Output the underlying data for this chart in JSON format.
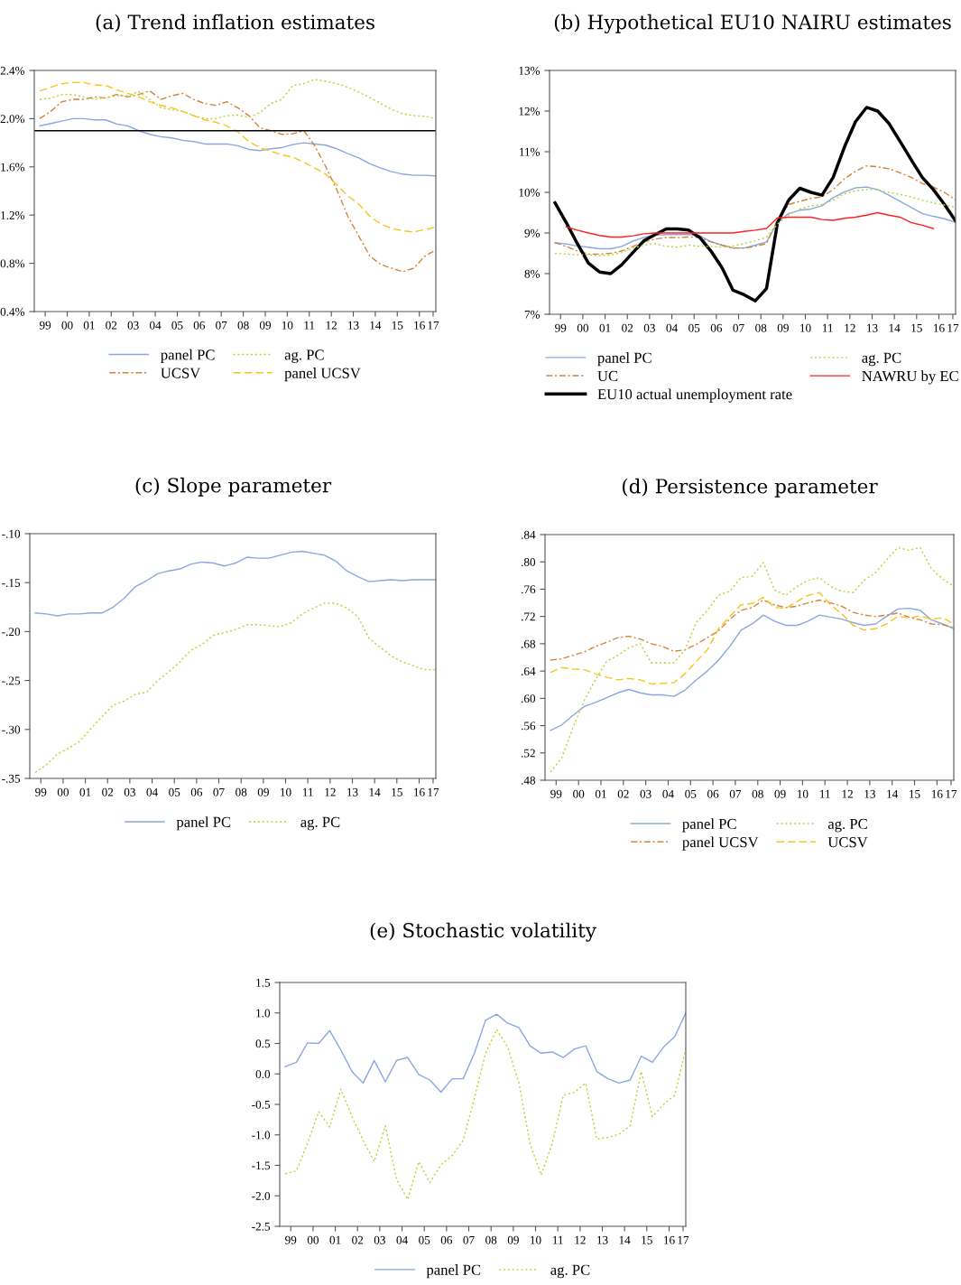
{
  "chart_data": [
    {
      "type": "line",
      "title": "(a) Trend inflation estimates",
      "x": [
        "1999-04",
        "1999-10",
        "2000-04",
        "2000-10",
        "2001-04",
        "2001-10",
        "2002-04",
        "2002-10",
        "2003-04",
        "2003-10",
        "2004-04",
        "2004-10",
        "2005-04",
        "2005-10",
        "2006-04",
        "2006-10",
        "2007-04",
        "2007-10",
        "2008-04",
        "2008-10",
        "2009-04",
        "2009-10",
        "2010-04",
        "2010-10",
        "2011-04",
        "2011-10",
        "2012-04",
        "2012-10",
        "2013-04",
        "2013-10",
        "2014-04",
        "2014-10",
        "2015-04",
        "2015-10",
        "2016-04",
        "2016-10",
        "2017-04"
      ],
      "xlim": [
        "1999-01",
        "2017-04"
      ],
      "xticks": [
        {
          "value": "1999-07",
          "label": "99"
        },
        {
          "value": "2000-07",
          "label": "00"
        },
        {
          "value": "2001-07",
          "label": "01"
        },
        {
          "value": "2002-07",
          "label": "02"
        },
        {
          "value": "2003-07",
          "label": "03"
        },
        {
          "value": "2004-07",
          "label": "04"
        },
        {
          "value": "2005-07",
          "label": "05"
        },
        {
          "value": "2006-07",
          "label": "06"
        },
        {
          "value": "2007-07",
          "label": "07"
        },
        {
          "value": "2008-07",
          "label": "08"
        },
        {
          "value": "2009-07",
          "label": "09"
        },
        {
          "value": "2010-07",
          "label": "10"
        },
        {
          "value": "2011-07",
          "label": "11"
        },
        {
          "value": "2012-07",
          "label": "12"
        },
        {
          "value": "2013-07",
          "label": "13"
        },
        {
          "value": "2014-07",
          "label": "14"
        },
        {
          "value": "2015-07",
          "label": "15"
        },
        {
          "value": "2016-07",
          "label": "16"
        },
        {
          "value": "2017-02-15",
          "label": "17"
        }
      ],
      "ylim": [
        0.4,
        2.4
      ],
      "yticks": [
        {
          "value": 0.4,
          "label": "0.4%"
        },
        {
          "value": 0.8,
          "label": "0.8%"
        },
        {
          "value": 1.2,
          "label": "1.2%"
        },
        {
          "value": 1.6,
          "label": "1.6%"
        },
        {
          "value": 2.0,
          "label": "2.0%"
        },
        {
          "value": 2.4,
          "label": "2.4%"
        }
      ],
      "legend": "bottom",
      "ref_lines": [
        {
          "axis": "y",
          "value": 1.9,
          "color": "#000000"
        }
      ],
      "series": [
        {
          "name": "panel PC",
          "color": "#8aa8e0",
          "line_style": "solid",
          "values": [
            1.94,
            1.96,
            1.98,
            2.0,
            2.0,
            1.99,
            1.99,
            1.955,
            1.94,
            1.9,
            1.87,
            1.85,
            1.84,
            1.82,
            1.81,
            1.79,
            1.79,
            1.79,
            1.775,
            1.745,
            1.735,
            1.75,
            1.76,
            1.785,
            1.8,
            1.79,
            1.78,
            1.75,
            1.71,
            1.675,
            1.625,
            1.59,
            1.56,
            1.54,
            1.53,
            1.53,
            1.525
          ]
        },
        {
          "name": "UCSV",
          "color": "#d2853a",
          "line_style": "dashdot",
          "values": [
            2.0,
            2.06,
            2.14,
            2.16,
            2.16,
            2.18,
            2.17,
            2.2,
            2.18,
            2.2,
            2.23,
            2.16,
            2.19,
            2.21,
            2.16,
            2.125,
            2.11,
            2.14,
            2.09,
            2.025,
            1.925,
            1.9,
            1.87,
            1.875,
            1.9,
            1.775,
            1.6,
            1.41,
            1.19,
            1.025,
            0.86,
            0.79,
            0.76,
            0.73,
            0.76,
            0.86,
            0.91
          ]
        },
        {
          "name": "ag. PC",
          "color": "#b8d436",
          "line_style": "dotted",
          "values": [
            2.16,
            2.17,
            2.2,
            2.2,
            2.18,
            2.16,
            2.175,
            2.19,
            2.19,
            2.225,
            2.16,
            2.09,
            2.075,
            2.06,
            2.025,
            2.0,
            2.0,
            2.025,
            2.03,
            2.01,
            2.05,
            2.125,
            2.16,
            2.275,
            2.29,
            2.325,
            2.31,
            2.29,
            2.26,
            2.22,
            2.175,
            2.125,
            2.075,
            2.04,
            2.025,
            2.02,
            2.0
          ]
        },
        {
          "name": "panel UCSV",
          "color": "#f5c518",
          "line_style": "dashed",
          "values": [
            2.23,
            2.26,
            2.29,
            2.3,
            2.3,
            2.28,
            2.275,
            2.24,
            2.21,
            2.18,
            2.14,
            2.11,
            2.09,
            2.06,
            2.025,
            1.99,
            1.97,
            1.94,
            1.89,
            1.81,
            1.76,
            1.73,
            1.7,
            1.68,
            1.64,
            1.59,
            1.54,
            1.45,
            1.36,
            1.29,
            1.19,
            1.125,
            1.09,
            1.07,
            1.06,
            1.08,
            1.1
          ]
        }
      ]
    },
    {
      "type": "line",
      "title": "(b) Hypothetical EU10 NAIRU estimates",
      "x": [
        "1999-04",
        "1999-10",
        "2000-04",
        "2000-10",
        "2001-04",
        "2001-10",
        "2002-04",
        "2002-10",
        "2003-04",
        "2003-10",
        "2004-04",
        "2004-10",
        "2005-04",
        "2005-10",
        "2006-04",
        "2006-10",
        "2007-04",
        "2007-10",
        "2008-04",
        "2008-10",
        "2009-04",
        "2009-10",
        "2010-04",
        "2010-10",
        "2011-04",
        "2011-10",
        "2012-04",
        "2012-10",
        "2013-04",
        "2013-10",
        "2014-04",
        "2014-10",
        "2015-04",
        "2015-10",
        "2016-04",
        "2016-10",
        "2017-04"
      ],
      "xlim": [
        "1999-01",
        "2017-04"
      ],
      "xticks": [
        {
          "value": "1999-07",
          "label": "99"
        },
        {
          "value": "2000-07",
          "label": "00"
        },
        {
          "value": "2001-07",
          "label": "01"
        },
        {
          "value": "2002-07",
          "label": "02"
        },
        {
          "value": "2003-07",
          "label": "03"
        },
        {
          "value": "2004-07",
          "label": "04"
        },
        {
          "value": "2005-07",
          "label": "05"
        },
        {
          "value": "2006-07",
          "label": "06"
        },
        {
          "value": "2007-07",
          "label": "07"
        },
        {
          "value": "2008-07",
          "label": "08"
        },
        {
          "value": "2009-07",
          "label": "09"
        },
        {
          "value": "2010-07",
          "label": "10"
        },
        {
          "value": "2011-07",
          "label": "11"
        },
        {
          "value": "2012-07",
          "label": "12"
        },
        {
          "value": "2013-07",
          "label": "13"
        },
        {
          "value": "2014-07",
          "label": "14"
        },
        {
          "value": "2015-07",
          "label": "15"
        },
        {
          "value": "2016-07",
          "label": "16"
        },
        {
          "value": "2017-02-15",
          "label": "17"
        }
      ],
      "ylim": [
        7,
        13
      ],
      "yticks": [
        {
          "value": 7,
          "label": "7%"
        },
        {
          "value": 8,
          "label": "8%"
        },
        {
          "value": 9,
          "label": "9%"
        },
        {
          "value": 10,
          "label": "10%"
        },
        {
          "value": 11,
          "label": "11%"
        },
        {
          "value": 12,
          "label": "12%"
        },
        {
          "value": 13,
          "label": "13%"
        }
      ],
      "legend": "bottom",
      "series": [
        {
          "name": "panel PC",
          "color": "#8aa8e0",
          "line_style": "solid",
          "values": [
            8.76,
            8.73,
            8.68,
            8.65,
            8.61,
            8.61,
            8.67,
            8.8,
            8.89,
            8.95,
            8.96,
            8.96,
            8.96,
            8.93,
            8.79,
            8.7,
            8.63,
            8.63,
            8.7,
            8.78,
            9.26,
            9.48,
            9.56,
            9.59,
            9.67,
            9.87,
            10.01,
            10.11,
            10.13,
            10.07,
            9.93,
            9.78,
            9.63,
            9.48,
            9.41,
            9.35,
            9.26
          ]
        },
        {
          "name": "UC",
          "color": "#d2853a",
          "line_style": "dashdot",
          "values": [
            8.76,
            8.67,
            8.56,
            8.48,
            8.48,
            8.5,
            8.56,
            8.67,
            8.78,
            8.85,
            8.89,
            8.89,
            8.9,
            8.89,
            8.78,
            8.7,
            8.63,
            8.63,
            8.67,
            8.74,
            9.33,
            9.7,
            9.78,
            9.85,
            9.89,
            10.07,
            10.33,
            10.52,
            10.65,
            10.63,
            10.58,
            10.48,
            10.37,
            10.22,
            10.13,
            10.0,
            9.81
          ]
        },
        {
          "name": "EU10 actual unemployment rate",
          "color": "#000000",
          "line_style": "solid",
          "values": [
            9.74,
            9.26,
            8.74,
            8.26,
            8.04,
            8.0,
            8.22,
            8.52,
            8.81,
            8.96,
            9.1,
            9.1,
            9.07,
            8.89,
            8.56,
            8.15,
            7.59,
            7.48,
            7.33,
            7.63,
            9.26,
            9.81,
            10.1,
            10.0,
            9.93,
            10.37,
            11.11,
            11.74,
            12.09,
            12.0,
            11.7,
            11.26,
            10.81,
            10.37,
            10.07,
            9.7,
            9.3
          ]
        },
        {
          "name": "ag. PC",
          "color": "#b8d436",
          "line_style": "dotted",
          "values": [
            8.5,
            8.48,
            8.46,
            8.46,
            8.44,
            8.46,
            8.52,
            8.63,
            8.7,
            8.74,
            8.67,
            8.65,
            8.7,
            8.67,
            8.67,
            8.65,
            8.68,
            8.74,
            8.81,
            8.89,
            9.22,
            9.44,
            9.59,
            9.67,
            9.7,
            9.81,
            9.96,
            10.04,
            10.07,
            10.06,
            10.0,
            9.95,
            9.89,
            9.81,
            9.74,
            9.69,
            9.63
          ]
        },
        {
          "name": "NAWRU by EC",
          "color": "#ff2020",
          "line_style": "solid",
          "values": [
            null,
            9.15,
            9.07,
            9.0,
            8.94,
            8.9,
            8.9,
            8.93,
            8.98,
            9.0,
            9.0,
            9.0,
            9.0,
            9.0,
            9.0,
            9.0,
            9.0,
            9.04,
            9.07,
            9.11,
            9.37,
            9.39,
            9.39,
            9.39,
            9.33,
            9.31,
            9.36,
            9.39,
            9.44,
            9.5,
            9.44,
            9.39,
            9.26,
            9.19,
            9.11,
            null,
            null
          ]
        }
      ]
    },
    {
      "type": "line",
      "title": "(c) Slope parameter",
      "x": [
        "1999-04",
        "1999-10",
        "2000-04",
        "2000-10",
        "2001-04",
        "2001-10",
        "2002-04",
        "2002-10",
        "2003-04",
        "2003-10",
        "2004-04",
        "2004-10",
        "2005-04",
        "2005-10",
        "2006-04",
        "2006-10",
        "2007-04",
        "2007-10",
        "2008-04",
        "2008-10",
        "2009-04",
        "2009-10",
        "2010-04",
        "2010-10",
        "2011-04",
        "2011-10",
        "2012-04",
        "2012-10",
        "2013-04",
        "2013-10",
        "2014-04",
        "2014-10",
        "2015-04",
        "2015-10",
        "2016-04",
        "2016-10",
        "2017-04"
      ],
      "xlim": [
        "1999-01",
        "2017-04"
      ],
      "xticks": [
        {
          "value": "1999-07",
          "label": "99"
        },
        {
          "value": "2000-07",
          "label": "00"
        },
        {
          "value": "2001-07",
          "label": "01"
        },
        {
          "value": "2002-07",
          "label": "02"
        },
        {
          "value": "2003-07",
          "label": "03"
        },
        {
          "value": "2004-07",
          "label": "04"
        },
        {
          "value": "2005-07",
          "label": "05"
        },
        {
          "value": "2006-07",
          "label": "06"
        },
        {
          "value": "2007-07",
          "label": "07"
        },
        {
          "value": "2008-07",
          "label": "08"
        },
        {
          "value": "2009-07",
          "label": "09"
        },
        {
          "value": "2010-07",
          "label": "10"
        },
        {
          "value": "2011-07",
          "label": "11"
        },
        {
          "value": "2012-07",
          "label": "12"
        },
        {
          "value": "2013-07",
          "label": "13"
        },
        {
          "value": "2014-07",
          "label": "14"
        },
        {
          "value": "2015-07",
          "label": "15"
        },
        {
          "value": "2016-07",
          "label": "16"
        },
        {
          "value": "2017-02-15",
          "label": "17"
        }
      ],
      "ylim": [
        -0.35,
        -0.1
      ],
      "yticks": [
        {
          "value": -0.35,
          "label": "-.35"
        },
        {
          "value": -0.3,
          "label": "-.30"
        },
        {
          "value": -0.25,
          "label": "-.25"
        },
        {
          "value": -0.2,
          "label": "-.20"
        },
        {
          "value": -0.15,
          "label": "-.15"
        },
        {
          "value": -0.1,
          "label": "-.10"
        }
      ],
      "legend": "bottom",
      "series": [
        {
          "name": "panel PC",
          "color": "#8aa8e0",
          "line_style": "solid",
          "values": [
            -0.181,
            -0.182,
            -0.184,
            -0.182,
            -0.182,
            -0.181,
            -0.181,
            -0.175,
            -0.166,
            -0.154,
            -0.148,
            -0.141,
            -0.138,
            -0.136,
            -0.131,
            -0.129,
            -0.13,
            -0.133,
            -0.13,
            -0.124,
            -0.125,
            -0.125,
            -0.122,
            -0.119,
            -0.118,
            -0.12,
            -0.122,
            -0.128,
            -0.138,
            -0.144,
            -0.149,
            -0.148,
            -0.147,
            -0.148,
            -0.147,
            -0.147,
            -0.147
          ]
        },
        {
          "name": "ag. PC",
          "color": "#b8d436",
          "line_style": "dotted",
          "values": [
            -0.344,
            -0.336,
            -0.325,
            -0.319,
            -0.312,
            -0.299,
            -0.287,
            -0.275,
            -0.271,
            -0.264,
            -0.262,
            -0.25,
            -0.241,
            -0.231,
            -0.219,
            -0.213,
            -0.204,
            -0.201,
            -0.198,
            -0.193,
            -0.193,
            -0.194,
            -0.195,
            -0.191,
            -0.182,
            -0.176,
            -0.171,
            -0.171,
            -0.176,
            -0.185,
            -0.207,
            -0.216,
            -0.225,
            -0.231,
            -0.235,
            -0.239,
            -0.239
          ]
        }
      ]
    },
    {
      "type": "line",
      "title": "(d) Persistence parameter",
      "x": [
        "1999-04",
        "1999-10",
        "2000-04",
        "2000-10",
        "2001-04",
        "2001-10",
        "2002-04",
        "2002-10",
        "2003-04",
        "2003-10",
        "2004-04",
        "2004-10",
        "2005-04",
        "2005-10",
        "2006-04",
        "2006-10",
        "2007-04",
        "2007-10",
        "2008-04",
        "2008-10",
        "2009-04",
        "2009-10",
        "2010-04",
        "2010-10",
        "2011-04",
        "2011-10",
        "2012-04",
        "2012-10",
        "2013-04",
        "2013-10",
        "2014-04",
        "2014-10",
        "2015-04",
        "2015-10",
        "2016-04",
        "2016-10",
        "2017-04"
      ],
      "xlim": [
        "1999-01",
        "2017-04"
      ],
      "xticks": [
        {
          "value": "1999-07",
          "label": "99"
        },
        {
          "value": "2000-07",
          "label": "00"
        },
        {
          "value": "2001-07",
          "label": "01"
        },
        {
          "value": "2002-07",
          "label": "02"
        },
        {
          "value": "2003-07",
          "label": "03"
        },
        {
          "value": "2004-07",
          "label": "04"
        },
        {
          "value": "2005-07",
          "label": "05"
        },
        {
          "value": "2006-07",
          "label": "06"
        },
        {
          "value": "2007-07",
          "label": "07"
        },
        {
          "value": "2008-07",
          "label": "08"
        },
        {
          "value": "2009-07",
          "label": "09"
        },
        {
          "value": "2010-07",
          "label": "10"
        },
        {
          "value": "2011-07",
          "label": "11"
        },
        {
          "value": "2012-07",
          "label": "12"
        },
        {
          "value": "2013-07",
          "label": "13"
        },
        {
          "value": "2014-07",
          "label": "14"
        },
        {
          "value": "2015-07",
          "label": "15"
        },
        {
          "value": "2016-07",
          "label": "16"
        },
        {
          "value": "2017-02-15",
          "label": "17"
        }
      ],
      "ylim": [
        0.48,
        0.84
      ],
      "yticks": [
        {
          "value": 0.48,
          "label": ".48"
        },
        {
          "value": 0.52,
          "label": ".52"
        },
        {
          "value": 0.56,
          "label": ".56"
        },
        {
          "value": 0.6,
          "label": ".60"
        },
        {
          "value": 0.64,
          "label": ".64"
        },
        {
          "value": 0.68,
          "label": ".68"
        },
        {
          "value": 0.72,
          "label": ".72"
        },
        {
          "value": 0.76,
          "label": ".76"
        },
        {
          "value": 0.8,
          "label": ".80"
        },
        {
          "value": 0.84,
          "label": ".84"
        }
      ],
      "legend": "bottom",
      "series": [
        {
          "name": "panel PC",
          "color": "#8aa8e0",
          "line_style": "solid",
          "values": [
            0.553,
            0.561,
            0.575,
            0.588,
            0.594,
            0.601,
            0.608,
            0.613,
            0.608,
            0.605,
            0.605,
            0.603,
            0.612,
            0.627,
            0.64,
            0.656,
            0.676,
            0.7,
            0.709,
            0.722,
            0.713,
            0.707,
            0.707,
            0.713,
            0.722,
            0.719,
            0.716,
            0.711,
            0.707,
            0.709,
            0.72,
            0.731,
            0.732,
            0.729,
            0.715,
            0.709,
            0.702
          ]
        },
        {
          "name": "panel UCSV",
          "color": "#d2853a",
          "line_style": "dashdot",
          "values": [
            0.656,
            0.658,
            0.663,
            0.668,
            0.676,
            0.682,
            0.689,
            0.691,
            0.687,
            0.68,
            0.676,
            0.669,
            0.671,
            0.679,
            0.689,
            0.699,
            0.716,
            0.729,
            0.733,
            0.744,
            0.737,
            0.733,
            0.735,
            0.74,
            0.744,
            0.74,
            0.735,
            0.726,
            0.722,
            0.72,
            0.722,
            0.725,
            0.719,
            0.715,
            0.709,
            0.708,
            0.704
          ]
        },
        {
          "name": "ag. PC",
          "color": "#b8d436",
          "line_style": "dotted",
          "values": [
            0.492,
            0.513,
            0.557,
            0.597,
            0.627,
            0.654,
            0.663,
            0.674,
            0.68,
            0.652,
            0.652,
            0.652,
            0.671,
            0.711,
            0.729,
            0.751,
            0.757,
            0.777,
            0.779,
            0.799,
            0.759,
            0.751,
            0.764,
            0.773,
            0.777,
            0.764,
            0.757,
            0.755,
            0.773,
            0.784,
            0.803,
            0.821,
            0.817,
            0.821,
            0.79,
            0.775,
            0.764
          ]
        },
        {
          "name": "UCSV",
          "color": "#f5c518",
          "line_style": "dashed",
          "values": [
            0.638,
            0.645,
            0.643,
            0.642,
            0.636,
            0.631,
            0.627,
            0.629,
            0.627,
            0.621,
            0.622,
            0.623,
            0.636,
            0.654,
            0.671,
            0.702,
            0.72,
            0.737,
            0.739,
            0.748,
            0.733,
            0.732,
            0.742,
            0.751,
            0.755,
            0.737,
            0.724,
            0.707,
            0.7,
            0.702,
            0.709,
            0.72,
            0.718,
            0.721,
            0.716,
            0.718,
            0.709
          ]
        }
      ]
    },
    {
      "type": "line",
      "title": "(e) Stochastic volatility",
      "x": [
        "1999-04",
        "1999-10",
        "2000-04",
        "2000-10",
        "2001-04",
        "2001-10",
        "2002-04",
        "2002-10",
        "2003-04",
        "2003-10",
        "2004-04",
        "2004-10",
        "2005-04",
        "2005-10",
        "2006-04",
        "2006-10",
        "2007-04",
        "2007-10",
        "2008-04",
        "2008-10",
        "2009-04",
        "2009-10",
        "2010-04",
        "2010-10",
        "2011-04",
        "2011-10",
        "2012-04",
        "2012-10",
        "2013-04",
        "2013-10",
        "2014-04",
        "2014-10",
        "2015-04",
        "2015-10",
        "2016-04",
        "2016-10",
        "2017-04"
      ],
      "xlim": [
        "1999-01",
        "2017-04"
      ],
      "xticks": [
        {
          "value": "1999-07",
          "label": "99"
        },
        {
          "value": "2000-07",
          "label": "00"
        },
        {
          "value": "2001-07",
          "label": "01"
        },
        {
          "value": "2002-07",
          "label": "02"
        },
        {
          "value": "2003-07",
          "label": "03"
        },
        {
          "value": "2004-07",
          "label": "04"
        },
        {
          "value": "2005-07",
          "label": "05"
        },
        {
          "value": "2006-07",
          "label": "06"
        },
        {
          "value": "2007-07",
          "label": "07"
        },
        {
          "value": "2008-07",
          "label": "08"
        },
        {
          "value": "2009-07",
          "label": "09"
        },
        {
          "value": "2010-07",
          "label": "10"
        },
        {
          "value": "2011-07",
          "label": "11"
        },
        {
          "value": "2012-07",
          "label": "12"
        },
        {
          "value": "2013-07",
          "label": "13"
        },
        {
          "value": "2014-07",
          "label": "14"
        },
        {
          "value": "2015-07",
          "label": "15"
        },
        {
          "value": "2016-07",
          "label": "16"
        },
        {
          "value": "2017-02-15",
          "label": "17"
        }
      ],
      "ylim": [
        -2.5,
        1.5
      ],
      "yticks": [
        {
          "value": -2.5,
          "label": "-2.5"
        },
        {
          "value": -2.0,
          "label": "-2.0"
        },
        {
          "value": -1.5,
          "label": "-1.5"
        },
        {
          "value": -1.0,
          "label": "-1.0"
        },
        {
          "value": -0.5,
          "label": "-0.5"
        },
        {
          "value": 0.0,
          "label": "0.0"
        },
        {
          "value": 0.5,
          "label": "0.5"
        },
        {
          "value": 1.0,
          "label": "1.0"
        },
        {
          "value": 1.5,
          "label": "1.5"
        }
      ],
      "legend": "bottom",
      "series": [
        {
          "name": "panel PC",
          "color": "#8aa8e0",
          "line_style": "solid",
          "values": [
            0.12,
            0.19,
            0.51,
            0.5,
            0.71,
            0.39,
            0.04,
            -0.15,
            0.22,
            -0.13,
            0.22,
            0.27,
            -0.01,
            -0.1,
            -0.3,
            -0.08,
            -0.08,
            0.34,
            0.88,
            0.98,
            0.83,
            0.76,
            0.46,
            0.34,
            0.36,
            0.27,
            0.41,
            0.46,
            0.04,
            -0.08,
            -0.15,
            -0.1,
            0.29,
            0.19,
            0.44,
            0.61,
            1.0
          ]
        },
        {
          "name": "ag. PC",
          "color": "#b8d436",
          "line_style": "dotted",
          "values": [
            -1.64,
            -1.59,
            -1.14,
            -0.62,
            -0.87,
            -0.25,
            -0.7,
            -1.09,
            -1.44,
            -0.85,
            -1.73,
            -2.06,
            -1.44,
            -1.78,
            -1.49,
            -1.34,
            -1.09,
            -0.4,
            0.34,
            0.73,
            0.44,
            -0.15,
            -1.14,
            -1.66,
            -1.14,
            -0.35,
            -0.3,
            -0.15,
            -1.07,
            -1.04,
            -0.99,
            -0.85,
            0.04,
            -0.7,
            -0.5,
            -0.35,
            0.41
          ]
        }
      ]
    }
  ]
}
